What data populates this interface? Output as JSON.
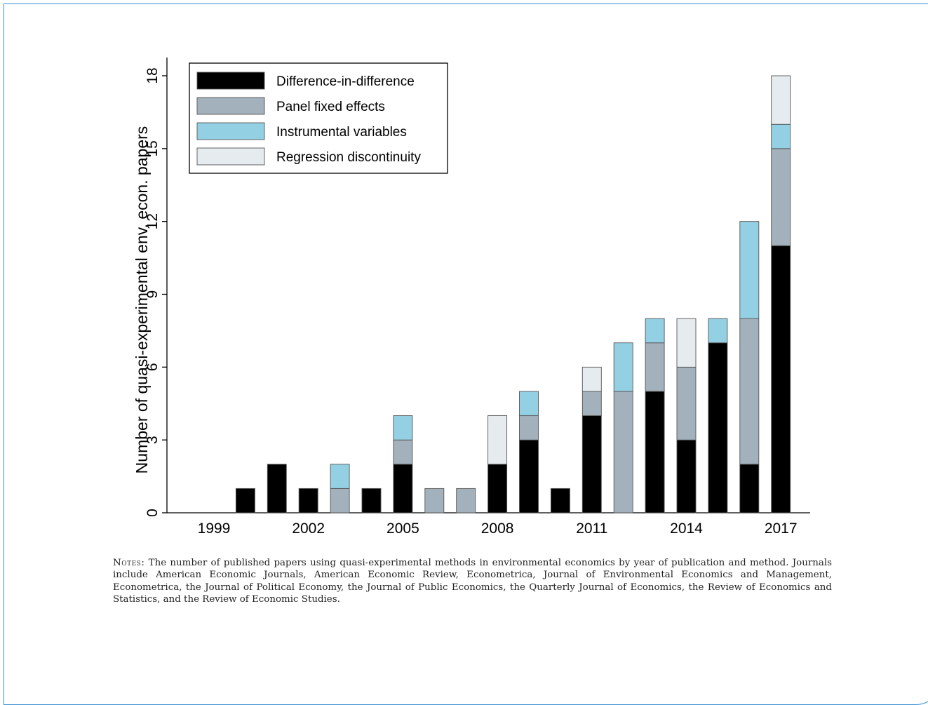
{
  "chart_data": {
    "type": "bar",
    "stacked": true,
    "title": "",
    "xlabel": "",
    "ylabel": "Number of quasi-experimental env. econ. papers",
    "ylim": [
      0,
      18
    ],
    "yticks": [
      "0",
      "3",
      "6",
      "9",
      "12",
      "15",
      "18"
    ],
    "x_tick_labels": [
      "1999",
      "2002",
      "2005",
      "2008",
      "2011",
      "2014",
      "2017"
    ],
    "categories": [
      1999,
      2000,
      2001,
      2002,
      2003,
      2004,
      2005,
      2006,
      2007,
      2008,
      2009,
      2010,
      2011,
      2012,
      2013,
      2014,
      2015,
      2016,
      2017
    ],
    "legend_position": "top-left",
    "grid": false,
    "series": [
      {
        "name": "Difference-in-difference",
        "color": "#000000",
        "values": [
          0,
          1,
          2,
          1,
          0,
          1,
          2,
          0,
          0,
          2,
          3,
          1,
          4,
          0,
          5,
          3,
          7,
          2,
          11
        ]
      },
      {
        "name": "Panel fixed effects",
        "color": "#a2b1bb",
        "values": [
          0,
          0,
          0,
          0,
          1,
          0,
          1,
          1,
          1,
          0,
          1,
          0,
          1,
          5,
          2,
          3,
          0,
          6,
          4
        ]
      },
      {
        "name": "Instrumental variables",
        "color": "#94d0e3",
        "values": [
          0,
          0,
          0,
          0,
          1,
          0,
          1,
          0,
          0,
          0,
          1,
          0,
          0,
          2,
          1,
          0,
          1,
          4,
          1
        ]
      },
      {
        "name": "Regression discontinuity",
        "color": "#e6ebef",
        "values": [
          0,
          0,
          0,
          0,
          0,
          0,
          0,
          0,
          0,
          2,
          0,
          0,
          1,
          0,
          0,
          2,
          0,
          0,
          2
        ]
      }
    ]
  },
  "notes": {
    "label": "Notes:",
    "text": " The number of published papers using quasi-experimental methods in environmental economics by year of publication and method. Journals include American Economic Journals, American Economic Review, Econometrica, Journal of Environmental Economics and Management, Econometrica, the Journal of Political Economy, the Journal of Public Economics, the Quarterly Journal of Economics, the Review of Economics and Statistics, and the Review of Economic Studies."
  }
}
